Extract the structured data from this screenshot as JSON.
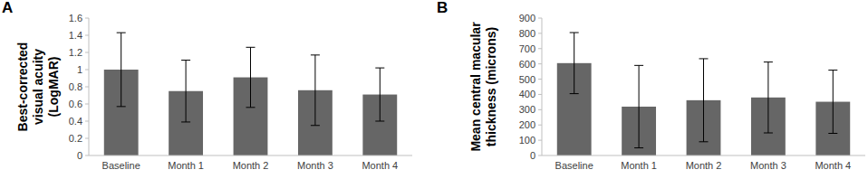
{
  "chart_data": [
    {
      "type": "bar",
      "title": "A",
      "y_label": "Best-corrected visual acuity (LogMAR)",
      "categories": [
        "Baseline",
        "Month 1",
        "Month 2",
        "Month 3",
        "Month 4"
      ],
      "values": [
        1.0,
        0.75,
        0.91,
        0.76,
        0.71
      ],
      "errors": [
        0.43,
        0.36,
        0.35,
        0.41,
        0.31
      ],
      "color": "#666666",
      "ylim": [
        0,
        1.6
      ],
      "yticks": [
        0,
        0.2,
        0.4,
        0.6,
        0.8,
        1,
        1.2,
        1.4,
        1.6
      ],
      "grid": false
    },
    {
      "type": "bar",
      "title": "B",
      "y_label": "Mean central macular thickness (microns)",
      "categories": [
        "Baseline",
        "Month 1",
        "Month 2",
        "Month 3",
        "Month 4"
      ],
      "values": [
        605,
        320,
        362,
        380,
        352
      ],
      "errors": [
        200,
        270,
        272,
        232,
        207
      ],
      "color": "#666666",
      "ylim": [
        0,
        900
      ],
      "yticks": [
        0,
        100,
        200,
        300,
        400,
        500,
        600,
        700,
        800,
        900
      ],
      "grid": false
    }
  ]
}
